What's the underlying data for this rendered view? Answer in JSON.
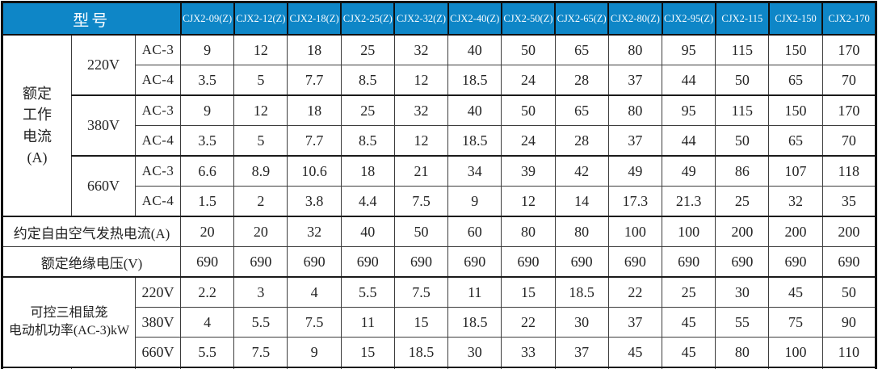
{
  "table": {
    "colors": {
      "header_bg": "#0e86c7",
      "header_text": "#f8fcff",
      "border": "#101010",
      "body_text": "#242424"
    },
    "header": {
      "model_label": "型号",
      "models": [
        "CJX2-09(Z)",
        "CJX2-12(Z)",
        "CJX2-18(Z)",
        "CJX2-25(Z)",
        "CJX2-32(Z)",
        "CJX2-40(Z)",
        "CJX2-50(Z)",
        "CJX2-65(Z)",
        "CJX2-80(Z)",
        "CJX2-95(Z)",
        "CJX2-115",
        "CJX2-150",
        "CJX2-170"
      ]
    },
    "rated_current": {
      "label_lines": [
        "额定",
        "工作",
        "电流",
        "(A)"
      ],
      "groups": [
        {
          "voltage": "220V",
          "rows": [
            {
              "class": "AC-3",
              "values": [
                "9",
                "12",
                "18",
                "25",
                "32",
                "40",
                "50",
                "65",
                "80",
                "95",
                "115",
                "150",
                "170"
              ]
            },
            {
              "class": "AC-4",
              "values": [
                "3.5",
                "5",
                "7.7",
                "8.5",
                "12",
                "18.5",
                "24",
                "28",
                "37",
                "44",
                "50",
                "65",
                "70"
              ]
            }
          ]
        },
        {
          "voltage": "380V",
          "rows": [
            {
              "class": "AC-3",
              "values": [
                "9",
                "12",
                "18",
                "25",
                "32",
                "40",
                "50",
                "65",
                "80",
                "95",
                "115",
                "150",
                "170"
              ]
            },
            {
              "class": "AC-4",
              "values": [
                "3.5",
                "5",
                "7.7",
                "8.5",
                "12",
                "18.5",
                "24",
                "28",
                "37",
                "44",
                "50",
                "65",
                "70"
              ]
            }
          ]
        },
        {
          "voltage": "660V",
          "rows": [
            {
              "class": "AC-3",
              "values": [
                "6.6",
                "8.9",
                "10.6",
                "18",
                "21",
                "34",
                "39",
                "42",
                "49",
                "49",
                "86",
                "107",
                "118"
              ]
            },
            {
              "class": "AC-4",
              "values": [
                "1.5",
                "2",
                "3.8",
                "4.4",
                "7.5",
                "9",
                "12",
                "14",
                "17.3",
                "21.3",
                "25",
                "32",
                "35"
              ]
            }
          ]
        }
      ]
    },
    "thermal_current": {
      "label": "约定自由空气发热电流(A)",
      "values": [
        "20",
        "20",
        "32",
        "40",
        "50",
        "60",
        "80",
        "80",
        "100",
        "100",
        "200",
        "200",
        "200"
      ]
    },
    "insulation_voltage": {
      "label": "额定绝缘电压(V)",
      "values": [
        "690",
        "690",
        "690",
        "690",
        "690",
        "690",
        "690",
        "690",
        "690",
        "690",
        "690",
        "690",
        "690"
      ]
    },
    "motor_power": {
      "label_lines": [
        "可控三相鼠笼",
        "电动机功率(AC-3)kW"
      ],
      "rows": [
        {
          "voltage": "220V",
          "values": [
            "2.2",
            "3",
            "4",
            "5.5",
            "7.5",
            "11",
            "15",
            "18.5",
            "22",
            "25",
            "30",
            "45",
            "50"
          ]
        },
        {
          "voltage": "380V",
          "values": [
            "4",
            "5.5",
            "7.5",
            "11",
            "15",
            "18.5",
            "22",
            "30",
            "37",
            "45",
            "55",
            "75",
            "90"
          ]
        },
        {
          "voltage": "660V",
          "values": [
            "5.5",
            "7.5",
            "9",
            "15",
            "18.5",
            "30",
            "33",
            "37",
            "45",
            "45",
            "80",
            "100",
            "110"
          ]
        }
      ]
    }
  }
}
